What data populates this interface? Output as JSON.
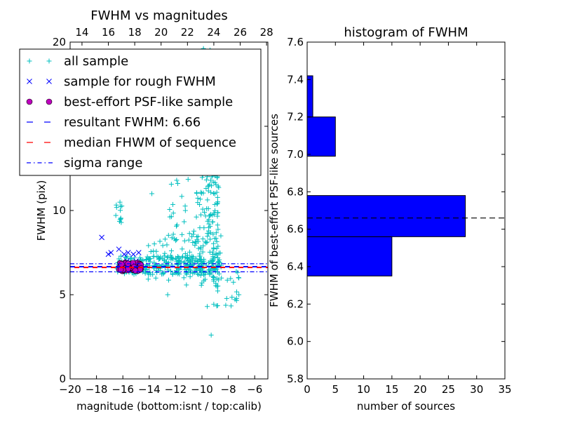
{
  "chart_data": [
    {
      "type": "scatter",
      "title": "FWHM vs magnitudes",
      "xlabel": "magnitude (bottom:isnt / top:calib)",
      "ylabel": "FWHM (pix)",
      "xlim": [
        -20,
        -5
      ],
      "ylim": [
        0,
        20
      ],
      "top_xlim": [
        13.1,
        28.1
      ],
      "xticks": [
        -20,
        -18,
        -16,
        -14,
        -12,
        -10,
        -8,
        -6
      ],
      "xtick_labels": [
        "−20",
        "−18",
        "−16",
        "−14",
        "−12",
        "−10",
        "−8",
        "−6"
      ],
      "top_xticks": [
        14,
        16,
        18,
        20,
        22,
        24,
        26,
        28
      ],
      "top_xtick_labels": [
        "14",
        "16",
        "18",
        "20",
        "22",
        "24",
        "26",
        "28"
      ],
      "yticks": [
        0,
        5,
        10,
        15,
        20
      ],
      "ytick_labels": [
        "0",
        "5",
        "10",
        "15",
        "20"
      ],
      "legend": [
        {
          "label": "all sample",
          "marker": "+",
          "color": "#00bfbf"
        },
        {
          "label": "sample for rough FWHM",
          "marker": "x",
          "color": "#0000ff"
        },
        {
          "label": "best-effort PSF-like sample",
          "marker": "o",
          "color": "#bf00bf"
        },
        {
          "label": "resultant FWHM: 6.66",
          "linestyle": "dashed",
          "color": "#0000ff"
        },
        {
          "label": "median FHWM of sequence",
          "linestyle": "dashed",
          "color": "#ff0000"
        },
        {
          "label": "sigma range",
          "linestyle": "dashdot",
          "color": "#0000ff"
        }
      ],
      "legend_loc": "upper-left",
      "resultant_fwhm": 6.66,
      "median_fwhm": 6.62,
      "sigma_range": [
        6.36,
        6.84
      ],
      "rough_sample": [
        {
          "x": -17.6,
          "y": 8.4
        },
        {
          "x": -17.1,
          "y": 7.4
        },
        {
          "x": -16.9,
          "y": 7.5
        },
        {
          "x": -16.3,
          "y": 7.7
        },
        {
          "x": -15.9,
          "y": 7.4
        },
        {
          "x": -15.6,
          "y": 7.5
        },
        {
          "x": -15.2,
          "y": 7.4
        },
        {
          "x": -14.8,
          "y": 7.5
        },
        {
          "x": -16.0,
          "y": 6.9
        },
        {
          "x": -15.7,
          "y": 7.0
        },
        {
          "x": -15.4,
          "y": 6.9
        },
        {
          "x": -15.0,
          "y": 7.0
        },
        {
          "x": -16.2,
          "y": 6.7
        },
        {
          "x": -15.8,
          "y": 6.6
        },
        {
          "x": -15.1,
          "y": 6.7
        },
        {
          "x": -14.7,
          "y": 6.6
        }
      ],
      "psf_sample_range": {
        "x": [
          -16.3,
          -14.6
        ],
        "y": [
          6.4,
          6.9
        ],
        "count": 50
      },
      "all_sample_clusters": [
        {
          "x": [
            -16.6,
            -16.0
          ],
          "y": [
            9.0,
            10.5
          ],
          "count": 12
        },
        {
          "x": [
            -16.5,
            -8.5
          ],
          "y": [
            6.2,
            7.3
          ],
          "count": 240
        },
        {
          "x": [
            -14.5,
            -8.5
          ],
          "y": [
            5.5,
            8.6
          ],
          "count": 70
        },
        {
          "x": [
            -10.2,
            -8.7
          ],
          "y": [
            5.8,
            20.0
          ],
          "count": 240
        },
        {
          "x": [
            -12.5,
            -10.2
          ],
          "y": [
            7.0,
            12.0
          ],
          "count": 40
        },
        {
          "x": [
            -9.2,
            -7.0
          ],
          "y": [
            4.3,
            6.5
          ],
          "count": 25
        }
      ],
      "all_sample_extra": [
        {
          "x": -12.6,
          "y": 5.0
        },
        {
          "x": -9.6,
          "y": 4.3
        },
        {
          "x": -9.3,
          "y": 2.6
        },
        {
          "x": -7.2,
          "y": 5.0
        },
        {
          "x": -13.8,
          "y": 11.0
        }
      ]
    },
    {
      "type": "histogram",
      "orientation": "horizontal",
      "title": "histogram of FWHM",
      "xlabel": "number of sources",
      "ylabel": "FWHM of best-effort PSF-like sources",
      "xlim": [
        0,
        35
      ],
      "ylim": [
        5.8,
        7.6
      ],
      "xticks": [
        0,
        5,
        10,
        15,
        20,
        25,
        30,
        35
      ],
      "xtick_labels": [
        "0",
        "5",
        "10",
        "15",
        "20",
        "25",
        "30",
        "35"
      ],
      "yticks": [
        5.8,
        6.0,
        6.2,
        6.4,
        6.6,
        6.8,
        7.0,
        7.2,
        7.4,
        7.6
      ],
      "ytick_labels": [
        "5.8",
        "6.0",
        "6.2",
        "6.4",
        "6.6",
        "6.8",
        "7.0",
        "7.2",
        "7.4",
        "7.6"
      ],
      "bins": [
        {
          "low": 6.35,
          "high": 6.56,
          "count": 15
        },
        {
          "low": 6.56,
          "high": 6.78,
          "count": 28
        },
        {
          "low": 6.78,
          "high": 6.99,
          "count": 0
        },
        {
          "low": 6.99,
          "high": 7.2,
          "count": 5
        },
        {
          "low": 7.2,
          "high": 7.42,
          "count": 1
        },
        {
          "low": 7.42,
          "high": 7.42,
          "count": 0
        }
      ],
      "bar_color": "#0000ff",
      "reference_line": 6.66
    }
  ]
}
